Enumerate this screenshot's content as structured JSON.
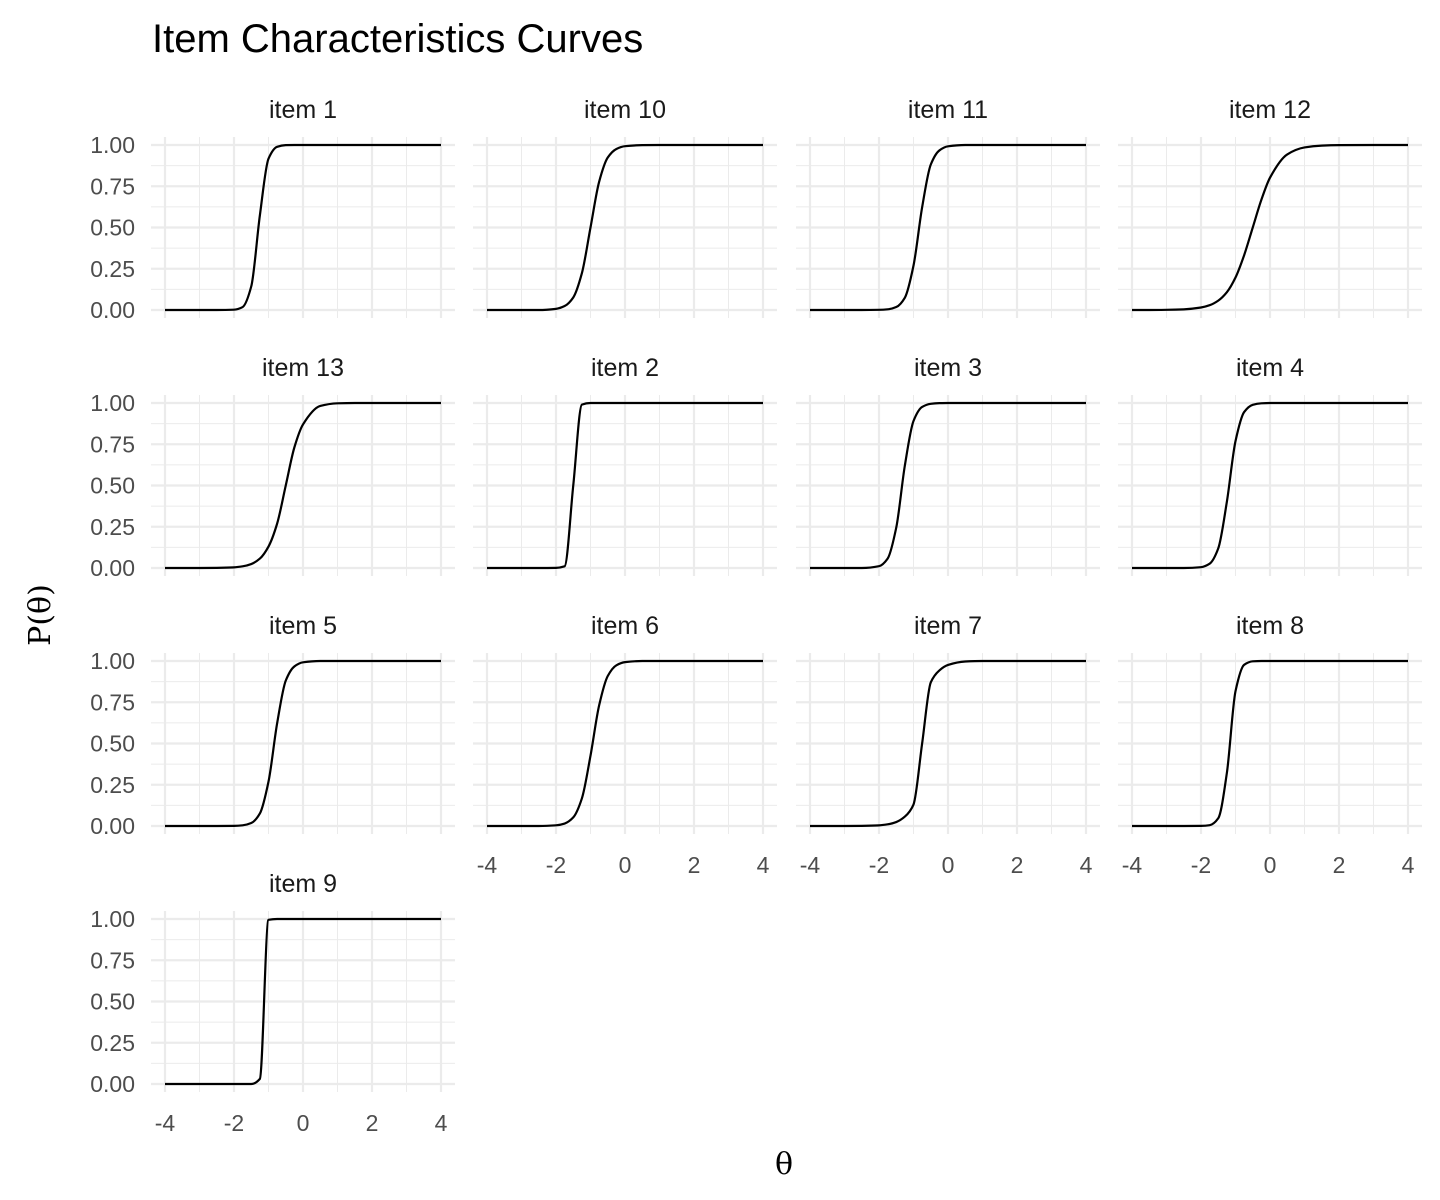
{
  "chart_data": {
    "type": "line",
    "title": "Item Characteristics Curves",
    "xlabel": "θ",
    "ylabel": "P(θ)",
    "xlim": [
      -4,
      4
    ],
    "ylim": [
      0,
      1
    ],
    "x_ticks": [
      "-4",
      "-2",
      "0",
      "2",
      "4"
    ],
    "y_ticks": [
      "0.00",
      "0.25",
      "0.50",
      "0.75",
      "1.00"
    ],
    "grid": true,
    "line_color": "#000000",
    "grid_color": "#ebebeb",
    "theta_grid": [
      -4,
      -3.5,
      -3,
      -2.5,
      -2,
      -1.75,
      -1.5,
      -1.25,
      -1,
      -0.75,
      -0.5,
      -0.25,
      0,
      0.5,
      1,
      1.5,
      2,
      3,
      4
    ],
    "panels": [
      {
        "name": "item 1",
        "y": [
          0,
          0,
          0,
          0,
          0.002,
          0.018,
          0.143,
          0.574,
          0.917,
          0.989,
          0.999,
          1,
          1,
          1,
          1,
          1,
          1,
          1,
          1
        ]
      },
      {
        "name": "item 10",
        "y": [
          0,
          0,
          0,
          0,
          0.007,
          0.024,
          0.076,
          0.223,
          0.5,
          0.777,
          0.924,
          0.976,
          0.993,
          0.999,
          1,
          1,
          1,
          1,
          1
        ]
      },
      {
        "name": "item 11",
        "y": [
          0,
          0,
          0,
          0,
          0.001,
          0.004,
          0.018,
          0.075,
          0.269,
          0.622,
          0.881,
          0.967,
          0.992,
          1,
          1,
          1,
          1,
          1,
          1
        ]
      },
      {
        "name": "item 12",
        "y": [
          0,
          0,
          0.001,
          0.004,
          0.015,
          0.029,
          0.057,
          0.108,
          0.197,
          0.332,
          0.5,
          0.668,
          0.802,
          0.943,
          0.985,
          0.996,
          0.999,
          1,
          1
        ]
      },
      {
        "name": "item 13",
        "y": [
          0,
          0,
          0,
          0.001,
          0.004,
          0.01,
          0.024,
          0.057,
          0.13,
          0.269,
          0.5,
          0.731,
          0.87,
          0.982,
          0.998,
          1,
          1,
          1,
          1
        ]
      },
      {
        "name": "item 2",
        "y": [
          0,
          0,
          0,
          0,
          0.001,
          0.01,
          0.5,
          0.99,
          1,
          1,
          1,
          1,
          1,
          1,
          1,
          1,
          1,
          1,
          1
        ]
      },
      {
        "name": "item 3",
        "y": [
          0,
          0,
          0,
          0,
          0.011,
          0.057,
          0.245,
          0.622,
          0.891,
          0.976,
          0.995,
          0.999,
          1,
          1,
          1,
          1,
          1,
          1,
          1
        ]
      },
      {
        "name": "item 4",
        "y": [
          0,
          0,
          0,
          0,
          0.005,
          0.026,
          0.119,
          0.402,
          0.769,
          0.945,
          0.989,
          0.998,
          1,
          1,
          1,
          1,
          1,
          1,
          1
        ]
      },
      {
        "name": "item 5",
        "y": [
          0,
          0,
          0,
          0,
          0.001,
          0.004,
          0.018,
          0.076,
          0.269,
          0.622,
          0.881,
          0.967,
          0.992,
          1,
          1,
          1,
          1,
          1,
          1
        ]
      },
      {
        "name": "item 6",
        "y": [
          0,
          0,
          0,
          0,
          0.004,
          0.015,
          0.052,
          0.167,
          0.426,
          0.731,
          0.909,
          0.974,
          0.993,
          1,
          1,
          1,
          1,
          1,
          1
        ]
      },
      {
        "name": "item 7",
        "y": [
          0,
          0,
          0,
          0.001,
          0.004,
          0.01,
          0.024,
          0.057,
          0.13,
          0.5,
          0.87,
          0.943,
          0.976,
          0.997,
          1,
          1,
          1,
          1,
          1
        ]
      },
      {
        "name": "item 8",
        "y": [
          0,
          0,
          0,
          0,
          0.001,
          0.005,
          0.047,
          0.322,
          0.817,
          0.977,
          0.998,
          1,
          1,
          1,
          1,
          1,
          1,
          1,
          1
        ]
      },
      {
        "name": "item 9",
        "y": [
          0,
          0,
          0,
          0,
          0,
          0,
          0,
          0.031,
          0.995,
          1,
          1,
          1,
          1,
          1,
          1,
          1,
          1,
          1,
          1
        ]
      }
    ]
  }
}
